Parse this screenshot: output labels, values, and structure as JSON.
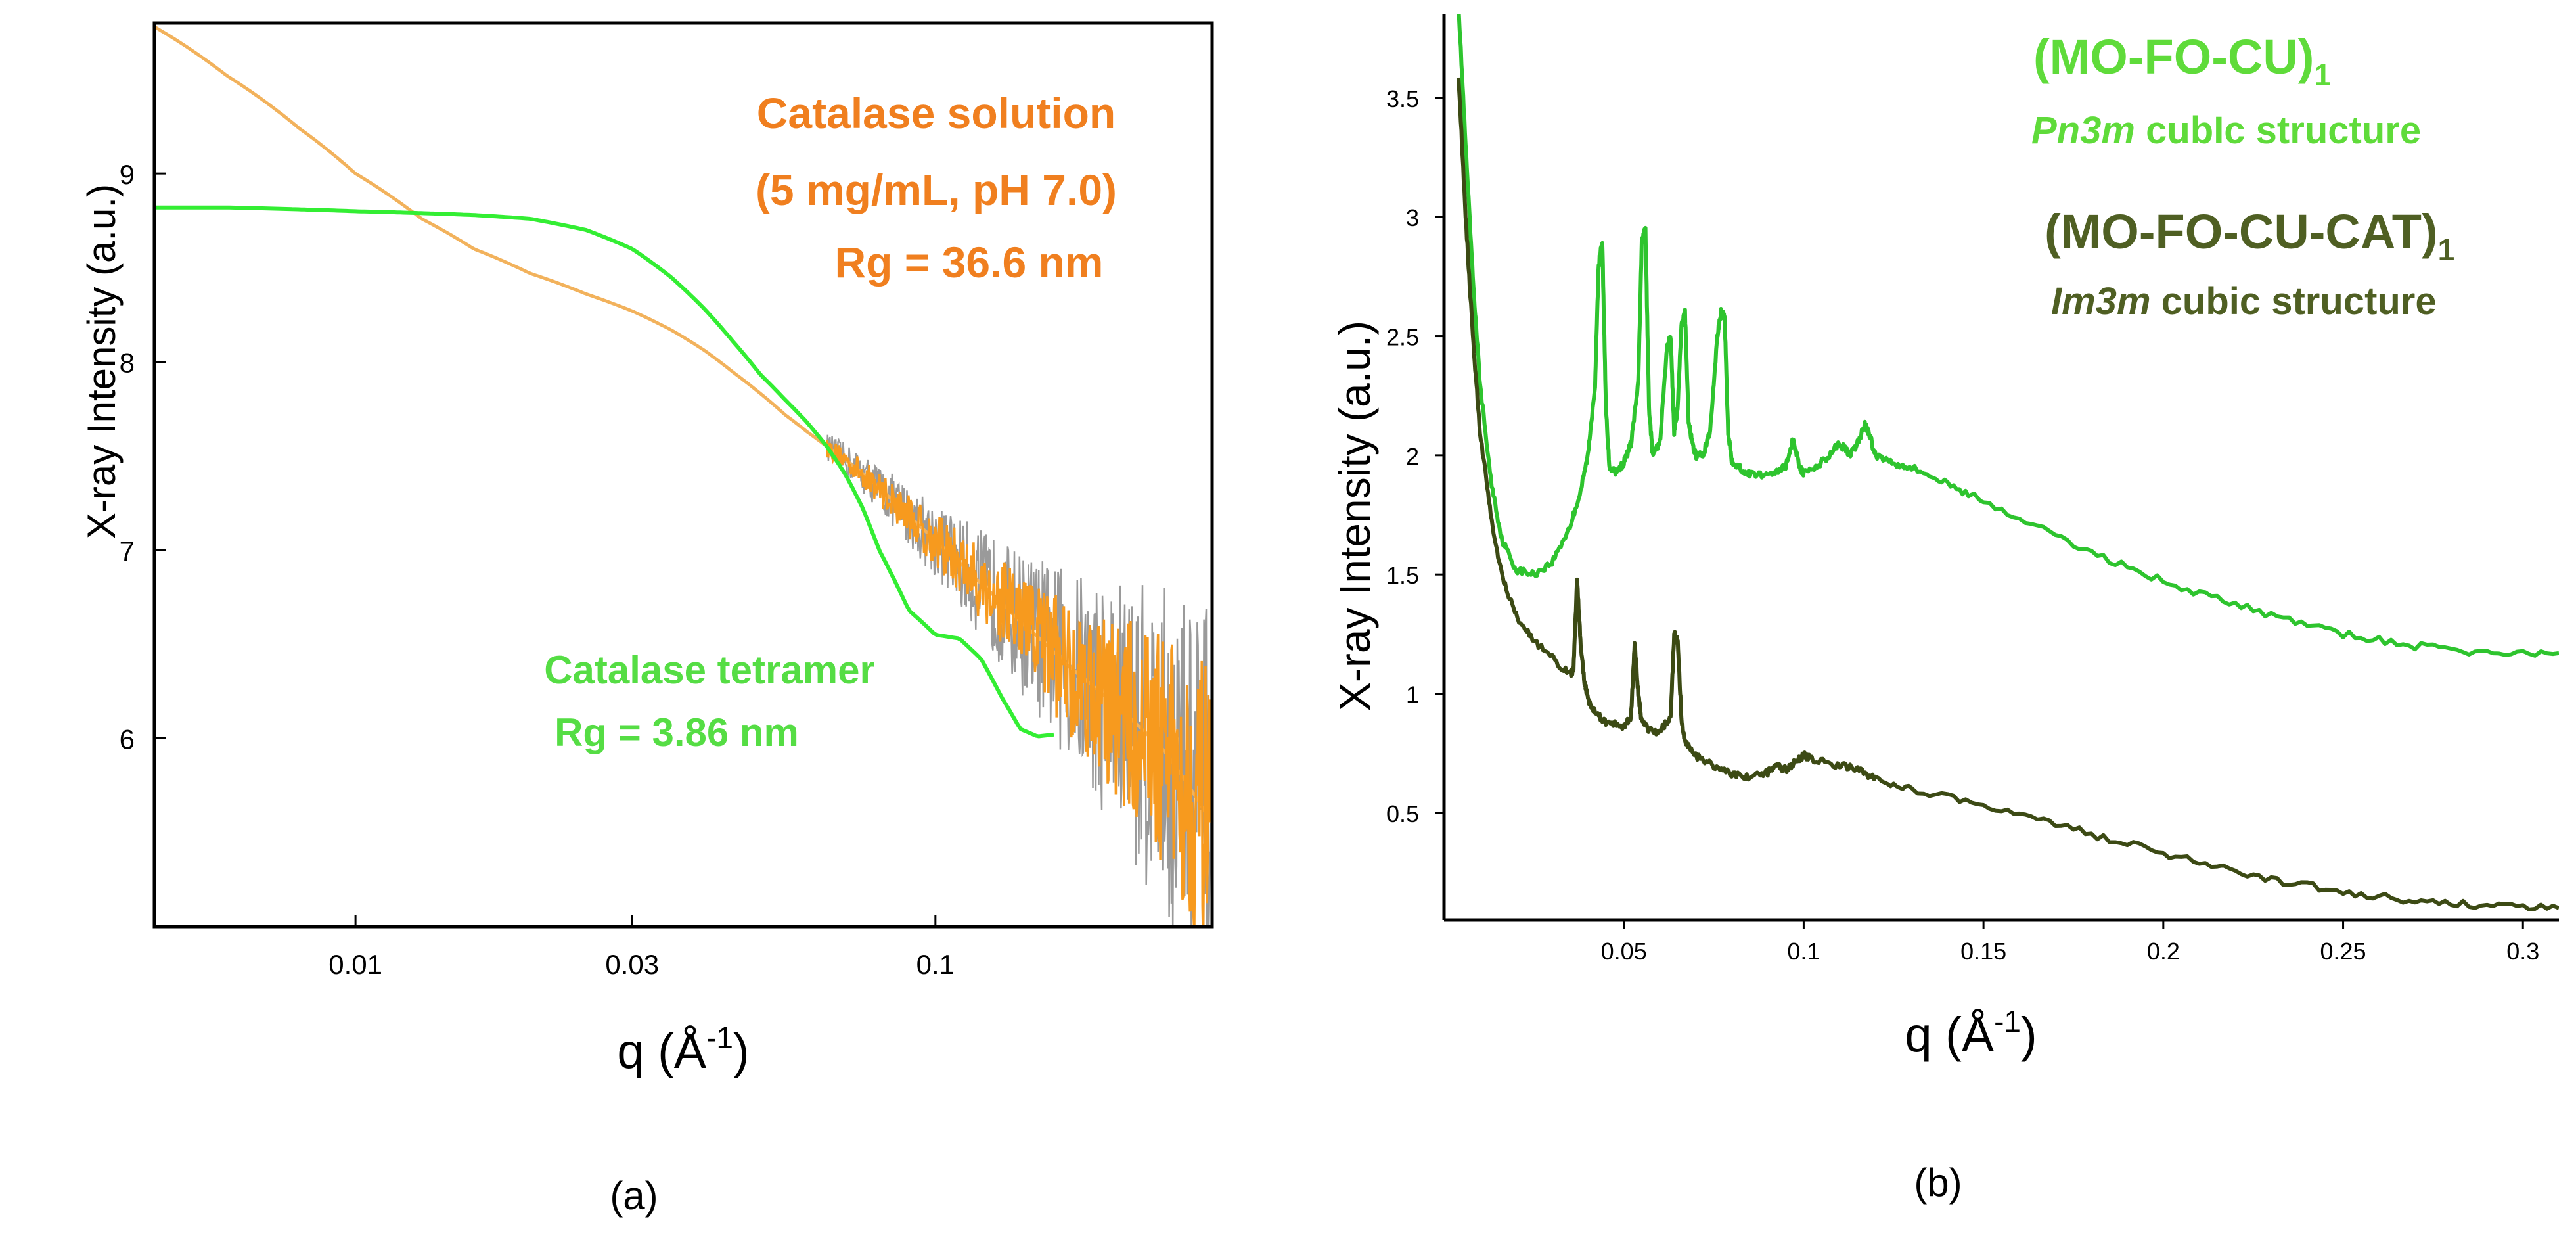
{
  "colors": {
    "frame": "#000000",
    "orange": "#f79a1e",
    "orange_label": "#f07f1f",
    "thin_orange": "#f2b25c",
    "grey_noise": "#9a9a9a",
    "bright_green": "#33ee33",
    "green_label": "#55dd44",
    "green_b": "#2ec42e",
    "dark_olive": "#3c4a14",
    "dark_olive_label": "#4f5f23",
    "light_green_label": "#5fdb3a"
  },
  "chart_data": [
    {
      "type": "line",
      "panel_label": "(a)",
      "xscale": "log",
      "xlabel": "q (Å",
      "xlabel_sup": "-1",
      "xlabel_close": ")",
      "ylabel": "X-ray Intensity (a.u.)",
      "xlim": [
        0.0045,
        0.3
      ],
      "ylim": [
        5.0,
        9.8
      ],
      "x_ticks": [
        0.01,
        0.03,
        0.1
      ],
      "x_tick_labels": [
        "0.01",
        "0.03",
        "0.1"
      ],
      "y_ticks": [
        6,
        7,
        8,
        9
      ],
      "y_tick_labels": [
        "6",
        "7",
        "8",
        "9"
      ],
      "annotations": {
        "solution_line1": "Catalase solution",
        "solution_line2": "(5 mg/mL, pH 7.0)",
        "solution_line3": "Rg = 36.6 nm",
        "tetramer_line1": "Catalase tetramer",
        "tetramer_line2": "Rg = 3.86 nm"
      },
      "series": [
        {
          "name": "Catalase solution (5 mg/mL, pH 7.0)",
          "color_key": "orange",
          "noisy_from": 0.065,
          "x": [
            0.0045,
            0.006,
            0.008,
            0.01,
            0.013,
            0.016,
            0.02,
            0.025,
            0.03,
            0.035,
            0.04,
            0.045,
            0.05,
            0.055,
            0.06,
            0.065,
            0.07,
            0.08,
            0.09,
            0.1,
            0.12,
            0.14,
            0.17,
            0.2,
            0.25,
            0.3
          ],
          "y": [
            9.78,
            9.52,
            9.24,
            9.0,
            8.76,
            8.6,
            8.47,
            8.36,
            8.27,
            8.17,
            8.06,
            7.94,
            7.83,
            7.72,
            7.63,
            7.55,
            7.48,
            7.33,
            7.18,
            7.05,
            6.82,
            6.62,
            6.38,
            6.2,
            5.92,
            5.55
          ]
        },
        {
          "name": "Catalase tetramer",
          "color_key": "bright_green",
          "x": [
            0.0045,
            0.006,
            0.008,
            0.01,
            0.013,
            0.016,
            0.02,
            0.025,
            0.03,
            0.035,
            0.04,
            0.045,
            0.05,
            0.055,
            0.06,
            0.065,
            0.07,
            0.075,
            0.08,
            0.09,
            0.1,
            0.11,
            0.12,
            0.13,
            0.14,
            0.15,
            0.16
          ],
          "y": [
            8.82,
            8.82,
            8.81,
            8.8,
            8.79,
            8.78,
            8.76,
            8.7,
            8.6,
            8.45,
            8.28,
            8.1,
            7.93,
            7.8,
            7.68,
            7.55,
            7.4,
            7.22,
            7.0,
            6.68,
            6.55,
            6.53,
            6.42,
            6.22,
            6.05,
            6.01,
            6.02
          ]
        }
      ]
    },
    {
      "type": "line",
      "panel_label": "(b)",
      "xlabel": "q (Å",
      "xlabel_sup": "-1",
      "xlabel_close": ")",
      "ylabel": "X-ray Intensity (a.u.)",
      "xlim": [
        0,
        0.31
      ],
      "ylim": [
        0.05,
        3.85
      ],
      "x_ticks": [
        0.05,
        0.1,
        0.15,
        0.2,
        0.25,
        0.3
      ],
      "x_tick_labels": [
        "0.05",
        "0.1",
        "0.15",
        "0.2",
        "0.25",
        "0.3"
      ],
      "y_ticks": [
        0.5,
        1,
        1.5,
        2,
        2.5,
        3,
        3.5
      ],
      "y_tick_labels": [
        "0.5",
        "1",
        "1.5",
        "2",
        "2.5",
        "3",
        "3.5"
      ],
      "legend": {
        "series1_name": "(MO-FO-CU)",
        "series1_sub": "1",
        "series1_phase": "Pn3m",
        "series1_desc": "cubIc structure",
        "series2_name": "(MO-FO-CU-CAT)",
        "series2_sub": "1",
        "series2_phase": "Im3m",
        "series2_desc": "cubic structure"
      },
      "series": [
        {
          "name": "(MO-FO-CU)1 Pn3m cubic structure",
          "color_key": "green_b",
          "x": [
            0.004,
            0.006,
            0.008,
            0.01,
            0.013,
            0.016,
            0.02,
            0.025,
            0.03,
            0.035,
            0.038,
            0.04,
            0.042,
            0.043,
            0.044,
            0.045,
            0.046,
            0.048,
            0.05,
            0.052,
            0.054,
            0.055,
            0.056,
            0.057,
            0.058,
            0.06,
            0.062,
            0.063,
            0.064,
            0.065,
            0.066,
            0.067,
            0.068,
            0.069,
            0.07,
            0.072,
            0.074,
            0.076,
            0.077,
            0.078,
            0.079,
            0.08,
            0.082,
            0.085,
            0.09,
            0.095,
            0.097,
            0.099,
            0.1,
            0.105,
            0.11,
            0.113,
            0.115,
            0.117,
            0.118,
            0.12,
            0.125,
            0.13,
            0.14,
            0.15,
            0.17,
            0.19,
            0.21,
            0.23,
            0.25,
            0.27,
            0.29,
            0.31
          ],
          "y": [
            3.9,
            3.3,
            2.75,
            2.3,
            1.9,
            1.65,
            1.52,
            1.5,
            1.55,
            1.7,
            1.85,
            2.0,
            2.3,
            2.8,
            2.9,
            2.2,
            1.95,
            1.93,
            1.97,
            2.05,
            2.3,
            2.9,
            2.95,
            2.2,
            2.0,
            2.05,
            2.45,
            2.5,
            2.1,
            2.2,
            2.55,
            2.6,
            2.15,
            2.05,
            2.0,
            2.0,
            2.1,
            2.5,
            2.6,
            2.58,
            2.1,
            1.98,
            1.95,
            1.92,
            1.92,
            1.95,
            2.07,
            1.95,
            1.92,
            1.97,
            2.05,
            2.0,
            2.05,
            2.13,
            2.1,
            2.0,
            1.97,
            1.95,
            1.88,
            1.81,
            1.66,
            1.53,
            1.42,
            1.33,
            1.25,
            1.2,
            1.17,
            1.17
          ]
        },
        {
          "name": "(MO-FO-CU-CAT)1 Im3m cubic structure",
          "color_key": "dark_olive",
          "x": [
            0.004,
            0.006,
            0.008,
            0.01,
            0.013,
            0.016,
            0.02,
            0.025,
            0.03,
            0.035,
            0.036,
            0.037,
            0.038,
            0.039,
            0.04,
            0.042,
            0.045,
            0.05,
            0.052,
            0.053,
            0.054,
            0.055,
            0.057,
            0.06,
            0.063,
            0.064,
            0.065,
            0.066,
            0.067,
            0.07,
            0.075,
            0.08,
            0.085,
            0.09,
            0.092,
            0.095,
            0.098,
            0.1,
            0.103,
            0.11,
            0.115,
            0.12,
            0.13,
            0.15,
            0.17,
            0.19,
            0.21,
            0.23,
            0.25,
            0.27,
            0.29,
            0.31
          ],
          "y": [
            3.6,
            3.0,
            2.5,
            2.1,
            1.75,
            1.5,
            1.33,
            1.22,
            1.15,
            1.08,
            1.1,
            1.48,
            1.2,
            1.05,
            0.98,
            0.92,
            0.88,
            0.86,
            0.9,
            1.22,
            1.0,
            0.88,
            0.85,
            0.84,
            0.9,
            1.25,
            1.22,
            0.9,
            0.8,
            0.74,
            0.7,
            0.66,
            0.65,
            0.67,
            0.7,
            0.68,
            0.72,
            0.74,
            0.72,
            0.7,
            0.68,
            0.64,
            0.6,
            0.53,
            0.45,
            0.37,
            0.29,
            0.22,
            0.17,
            0.13,
            0.11,
            0.1
          ]
        }
      ]
    }
  ]
}
